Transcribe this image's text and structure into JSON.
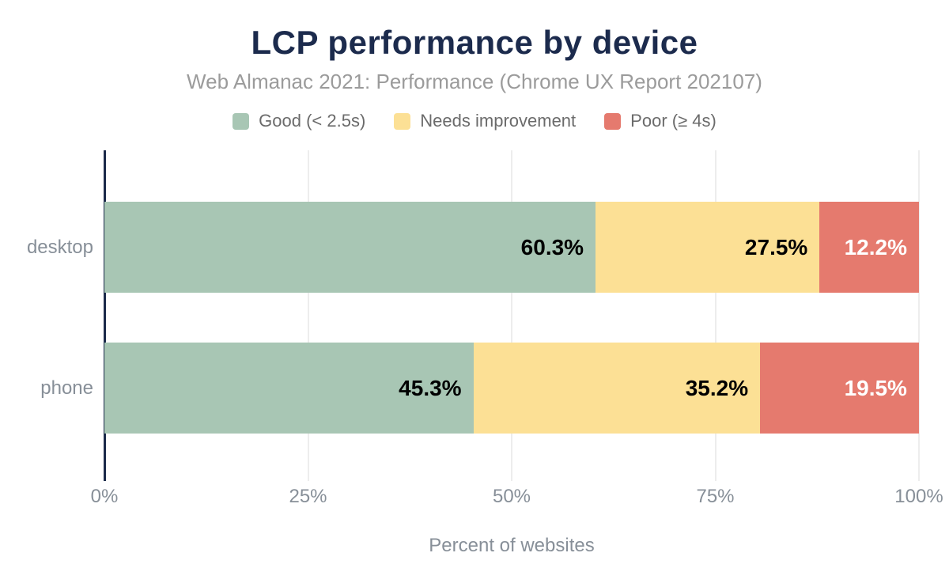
{
  "title": "LCP performance by device",
  "subtitle": "Web Almanac 2021: Performance (Chrome UX Report 202107)",
  "legend": [
    {
      "label": "Good (< 2.5s)",
      "color": "#a8c6b4"
    },
    {
      "label": "Needs improvement",
      "color": "#fce095"
    },
    {
      "label": "Poor (≥ 4s)",
      "color": "#e57a6e"
    }
  ],
  "chart_data": {
    "type": "bar",
    "stacked": true,
    "orientation": "horizontal",
    "categories": [
      "desktop",
      "phone"
    ],
    "series": [
      {
        "name": "Good (< 2.5s)",
        "color": "#a8c6b4",
        "label_color": "#000000",
        "values": [
          60.3,
          45.3
        ],
        "labels": [
          "60.3%",
          "45.3%"
        ]
      },
      {
        "name": "Needs improvement",
        "color": "#fce095",
        "label_color": "#000000",
        "values": [
          27.5,
          35.2
        ],
        "labels": [
          "27.5%",
          "35.2%"
        ]
      },
      {
        "name": "Poor (≥ 4s)",
        "color": "#e57a6e",
        "label_color": "#ffffff",
        "values": [
          12.2,
          19.5
        ],
        "labels": [
          "12.2%",
          "19.5%"
        ]
      }
    ],
    "xlabel": "Percent of websites",
    "ylabel": "",
    "x_ticks": [
      "0%",
      "25%",
      "50%",
      "75%",
      "100%"
    ],
    "x_tick_values": [
      0,
      25,
      50,
      75,
      100
    ],
    "xlim": [
      0,
      100
    ],
    "grid": true,
    "legend_position": "top"
  },
  "colors": {
    "title": "#1c2b4d",
    "subtitle": "#9b9b9b",
    "axis_line": "#1b2a4a",
    "gridline": "#ededed",
    "tick_text": "#878f98",
    "background": "#ffffff"
  }
}
